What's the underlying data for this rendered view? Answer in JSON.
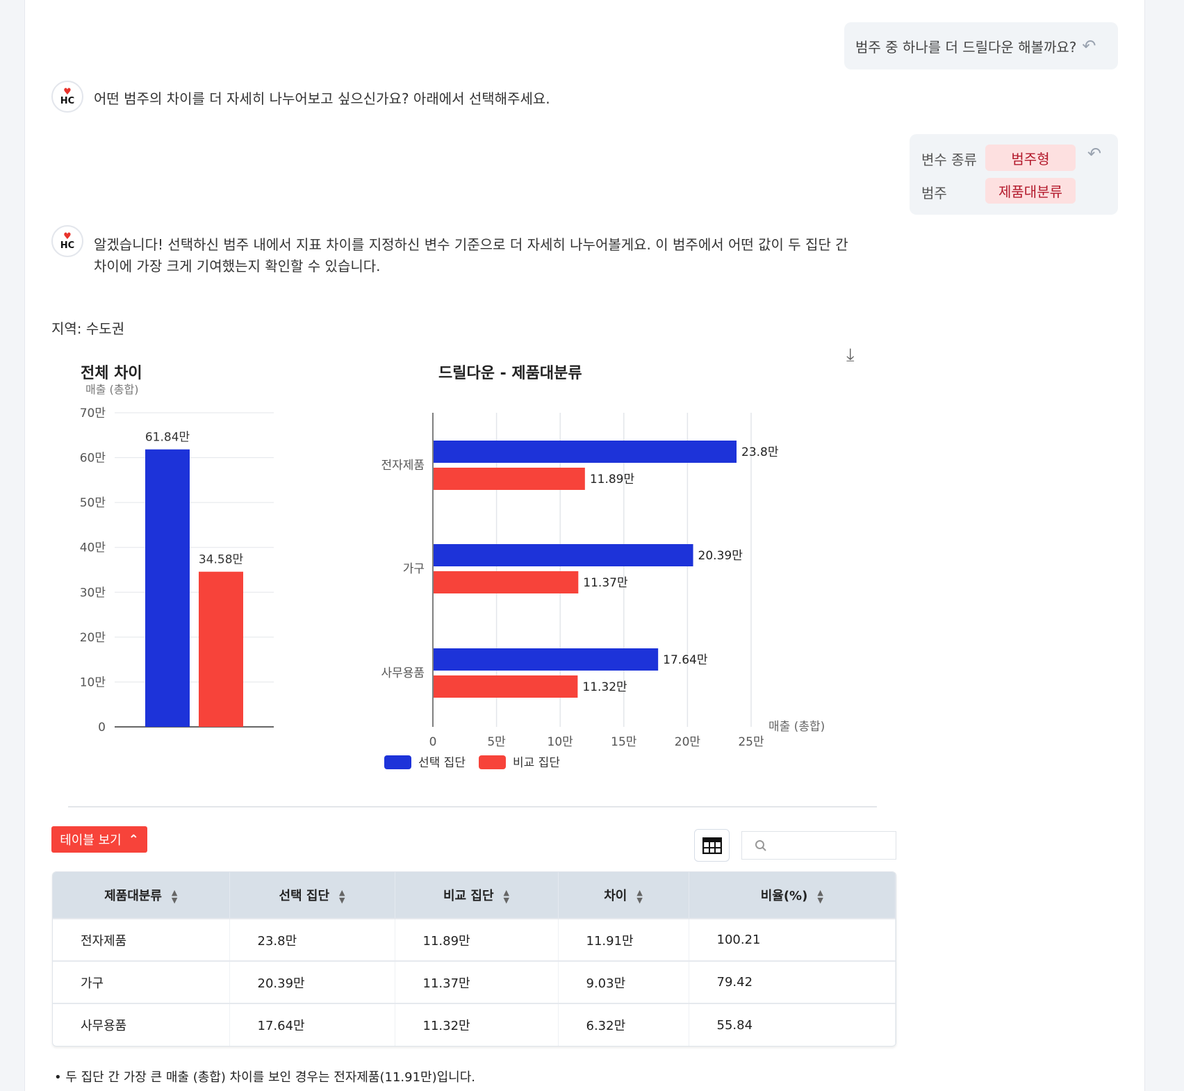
{
  "messages": {
    "user1": "범주 중 하나를 더 드릴다운 해볼까요?",
    "bot1": "어떤 범주의 차이를 더 자세히 나누어보고 싶으신가요? 아래에서 선택해주세요.",
    "selection": {
      "rows": [
        {
          "label": "변수 종류",
          "value": "범주형"
        },
        {
          "label": "범주",
          "value": "제품대분류"
        }
      ]
    },
    "bot2_line1": "알겠습니다! 선택하신 범주 내에서 지표 차이를 지정하신 변수 기준으로 더 자세히 나누어볼게요. 이 범주에서 어떤 값이 두 집단 간",
    "bot2_line2": "차이에 가장 크게 기여했는지 확인할 수 있습니다."
  },
  "avatar": {
    "heart": "♥",
    "text": "HC"
  },
  "region_label": "지역: 수도권",
  "colors": {
    "selected": "#1d33d9",
    "compare": "#f7433a"
  },
  "chart_data": [
    {
      "type": "bar",
      "title": "전체 차이",
      "subtitle": "매출 (총합)",
      "ylim": [
        0,
        700000
      ],
      "yticks": [
        "0",
        "10만",
        "20만",
        "30만",
        "40만",
        "50만",
        "60만",
        "70만"
      ],
      "series": [
        {
          "name": "선택 집단",
          "values": [
            618400
          ],
          "label": "61.84만"
        },
        {
          "name": "비교 집단",
          "values": [
            345800
          ],
          "label": "34.58만"
        }
      ],
      "grid": true
    },
    {
      "type": "bar",
      "orientation": "horizontal",
      "title": "드릴다운 - 제품대분류",
      "xlabel": "매출 (총합)",
      "xlim": [
        0,
        250000
      ],
      "xticks": [
        "0",
        "5만",
        "10만",
        "15만",
        "20만",
        "25만"
      ],
      "categories": [
        "전자제품",
        "가구",
        "사무용품"
      ],
      "series": [
        {
          "name": "선택 집단",
          "values": [
            238000,
            203900,
            176400
          ],
          "labels": [
            "23.8만",
            "20.39만",
            "17.64만"
          ]
        },
        {
          "name": "비교 집단",
          "values": [
            118900,
            113700,
            113200
          ],
          "labels": [
            "11.89만",
            "11.37만",
            "11.32만"
          ]
        }
      ],
      "legend": "bottom",
      "grid": true
    }
  ],
  "table_toggle": "테이블 보기",
  "search": {
    "placeholder": ""
  },
  "table": {
    "headers": [
      "제품대분류",
      "선택 집단",
      "비교 집단",
      "차이",
      "비율(%)"
    ],
    "rows": [
      [
        "전자제품",
        "23.8만",
        "11.89만",
        "11.91만",
        "100.21"
      ],
      [
        "가구",
        "20.39만",
        "11.37만",
        "9.03만",
        "79.42"
      ],
      [
        "사무용품",
        "17.64만",
        "11.32만",
        "6.32만",
        "55.84"
      ]
    ]
  },
  "summary": "두 집단 간 가장 큰 매출 (총합) 차이를 보인 경우는 전자제품(11.91만)입니다."
}
